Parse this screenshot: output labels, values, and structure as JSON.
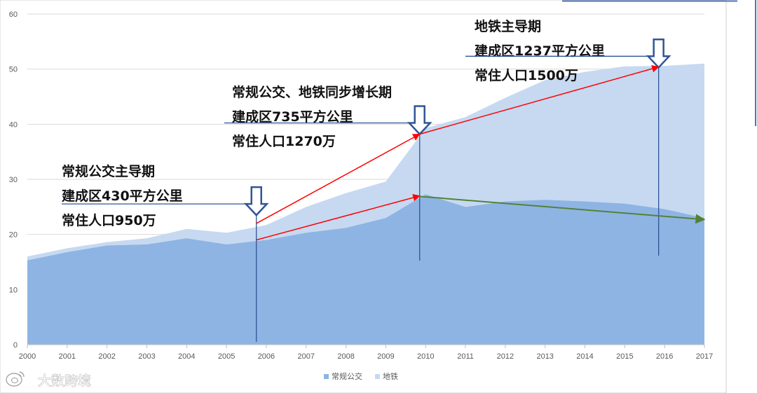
{
  "chart_data": {
    "type": "area",
    "stacked": true,
    "x": [
      2000,
      2001,
      2002,
      2003,
      2004,
      2005,
      2006,
      2007,
      2008,
      2009,
      2010,
      2011,
      2012,
      2013,
      2014,
      2015,
      2016,
      2017
    ],
    "xlim": [
      2000,
      2017
    ],
    "ylim": [
      0,
      60
    ],
    "yticks": [
      0,
      10,
      20,
      30,
      40,
      50,
      60
    ],
    "grid": true,
    "legend": "bottom-center",
    "series": [
      {
        "name": "常规公交",
        "color": "#8eb4e3",
        "values": [
          15.3,
          16.8,
          18.0,
          18.2,
          19.3,
          18.2,
          19.0,
          20.3,
          21.2,
          23.0,
          27.3,
          25.0,
          26.0,
          26.3,
          26.0,
          25.6,
          24.6,
          23.0
        ]
      },
      {
        "name": "地铁",
        "color": "#c6d9f1",
        "values": [
          0.7,
          0.7,
          0.6,
          1.1,
          1.7,
          2.1,
          2.7,
          4.7,
          6.3,
          6.6,
          12.0,
          16.3,
          18.8,
          21.7,
          23.5,
          24.9,
          26.0,
          28.0
        ]
      }
    ],
    "annotations": [
      {
        "lines": [
          "常规公交主导期",
          "建成区430平方公里",
          "常住人口950万"
        ],
        "year": 2005.75,
        "value": 23.5
      },
      {
        "lines": [
          "常规公交、地铁同步增长期",
          "建成区735平方公里",
          "常住人口1270万"
        ],
        "year": 2009.85,
        "value": 38.2
      },
      {
        "lines": [
          "地铁主导期",
          "建成区1237平方公里",
          "常住人口1500万"
        ],
        "year": 2015.85,
        "value": 50.3
      }
    ],
    "trend_arrows": [
      {
        "color": "#ff0000",
        "from": [
          2005.75,
          22.0
        ],
        "to": [
          2009.85,
          38.2
        ]
      },
      {
        "color": "#ff0000",
        "from": [
          2009.85,
          38.2
        ],
        "to": [
          2015.85,
          50.4
        ]
      },
      {
        "color": "#ff0000",
        "from": [
          2005.75,
          19.0
        ],
        "to": [
          2009.85,
          27.0
        ]
      },
      {
        "color": "#548235",
        "from": [
          2009.85,
          26.9
        ],
        "to": [
          2017.0,
          22.7
        ]
      }
    ]
  },
  "watermark": "大数跨境"
}
